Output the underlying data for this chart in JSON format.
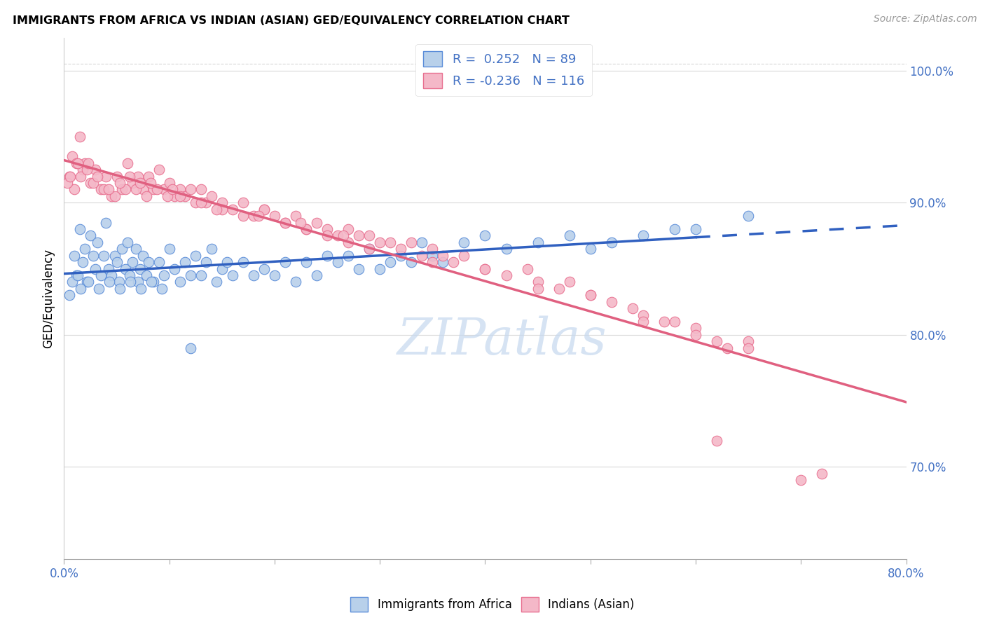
{
  "title": "IMMIGRANTS FROM AFRICA VS INDIAN (ASIAN) GED/EQUIVALENCY CORRELATION CHART",
  "source": "Source: ZipAtlas.com",
  "ylabel": "GED/Equivalency",
  "xlim": [
    0.0,
    80.0
  ],
  "ylim": [
    63.0,
    102.5
  ],
  "yticks": [
    70.0,
    80.0,
    90.0,
    100.0
  ],
  "xtick_positions": [
    0.0,
    10.0,
    20.0,
    30.0,
    40.0,
    50.0,
    60.0,
    70.0,
    80.0
  ],
  "R_blue": 0.252,
  "N_blue": 89,
  "R_pink": -0.236,
  "N_pink": 116,
  "blue_fill": "#b8d0ea",
  "pink_fill": "#f4b8c8",
  "blue_edge": "#5b8dd9",
  "pink_edge": "#e87090",
  "blue_line": "#3060c0",
  "pink_line": "#e06080",
  "watermark_color": "#c5d8ee",
  "legend_label_blue": "Immigrants from Africa",
  "legend_label_pink": "Indians (Asian)",
  "blue_x": [
    1.0,
    1.2,
    1.5,
    1.8,
    2.0,
    2.2,
    2.5,
    2.8,
    3.0,
    3.2,
    3.5,
    3.8,
    4.0,
    4.2,
    4.5,
    4.8,
    5.0,
    5.2,
    5.5,
    5.8,
    6.0,
    6.2,
    6.5,
    6.8,
    7.0,
    7.2,
    7.5,
    7.8,
    8.0,
    8.5,
    9.0,
    9.5,
    10.0,
    10.5,
    11.0,
    11.5,
    12.0,
    12.5,
    13.0,
    13.5,
    14.0,
    14.5,
    15.0,
    15.5,
    16.0,
    17.0,
    18.0,
    19.0,
    20.0,
    21.0,
    22.0,
    23.0,
    24.0,
    25.0,
    26.0,
    27.0,
    28.0,
    29.0,
    30.0,
    31.0,
    32.0,
    33.0,
    34.0,
    35.0,
    36.0,
    38.0,
    40.0,
    42.0,
    45.0,
    48.0,
    50.0,
    52.0,
    55.0,
    58.0,
    60.0,
    65.0,
    0.5,
    0.8,
    1.3,
    1.6,
    2.3,
    3.3,
    4.3,
    5.3,
    6.3,
    7.3,
    8.3,
    9.3,
    12.0
  ],
  "blue_y": [
    86.0,
    84.5,
    88.0,
    85.5,
    86.5,
    84.0,
    87.5,
    86.0,
    85.0,
    87.0,
    84.5,
    86.0,
    88.5,
    85.0,
    84.5,
    86.0,
    85.5,
    84.0,
    86.5,
    85.0,
    87.0,
    84.5,
    85.5,
    86.5,
    84.0,
    85.0,
    86.0,
    84.5,
    85.5,
    84.0,
    85.5,
    84.5,
    86.5,
    85.0,
    84.0,
    85.5,
    84.5,
    86.0,
    84.5,
    85.5,
    86.5,
    84.0,
    85.0,
    85.5,
    84.5,
    85.5,
    84.5,
    85.0,
    84.5,
    85.5,
    84.0,
    85.5,
    84.5,
    86.0,
    85.5,
    86.0,
    85.0,
    86.5,
    85.0,
    85.5,
    86.0,
    85.5,
    87.0,
    86.0,
    85.5,
    87.0,
    87.5,
    86.5,
    87.0,
    87.5,
    86.5,
    87.0,
    87.5,
    88.0,
    88.0,
    89.0,
    83.0,
    84.0,
    84.5,
    83.5,
    84.0,
    83.5,
    84.0,
    83.5,
    84.0,
    83.5,
    84.0,
    83.5,
    79.0
  ],
  "pink_x": [
    0.5,
    0.8,
    1.0,
    1.2,
    1.5,
    1.8,
    2.0,
    2.5,
    3.0,
    3.5,
    4.0,
    4.5,
    5.0,
    5.5,
    6.0,
    6.5,
    7.0,
    7.5,
    8.0,
    8.5,
    9.0,
    9.5,
    10.0,
    10.5,
    11.0,
    11.5,
    12.0,
    12.5,
    13.0,
    13.5,
    14.0,
    15.0,
    16.0,
    17.0,
    18.0,
    19.0,
    20.0,
    21.0,
    22.0,
    23.0,
    24.0,
    25.0,
    26.0,
    27.0,
    28.0,
    29.0,
    30.0,
    31.0,
    32.0,
    33.0,
    34.0,
    35.0,
    36.0,
    37.0,
    38.0,
    40.0,
    42.0,
    44.0,
    45.0,
    47.0,
    48.0,
    50.0,
    52.0,
    54.0,
    55.0,
    57.0,
    58.0,
    60.0,
    62.0,
    63.0,
    65.0,
    0.3,
    0.6,
    1.3,
    1.6,
    2.2,
    2.8,
    3.8,
    4.8,
    5.8,
    6.8,
    7.8,
    8.8,
    9.8,
    11.0,
    13.0,
    15.0,
    17.0,
    19.0,
    21.0,
    23.0,
    25.0,
    27.0,
    29.0,
    6.2,
    7.2,
    8.2,
    4.2,
    3.2,
    2.3,
    5.3,
    10.3,
    14.5,
    18.5,
    22.5,
    26.5,
    35.0,
    40.0,
    45.0,
    50.0,
    55.0,
    60.0,
    65.0,
    70.0,
    72.0,
    62.0
  ],
  "pink_y": [
    92.0,
    93.5,
    91.0,
    93.0,
    95.0,
    92.5,
    93.0,
    91.5,
    92.5,
    91.0,
    92.0,
    90.5,
    92.0,
    91.0,
    93.0,
    91.5,
    92.0,
    91.0,
    92.0,
    91.0,
    92.5,
    91.0,
    91.5,
    90.5,
    91.0,
    90.5,
    91.0,
    90.0,
    91.0,
    90.0,
    90.5,
    90.0,
    89.5,
    90.0,
    89.0,
    89.5,
    89.0,
    88.5,
    89.0,
    88.0,
    88.5,
    88.0,
    87.5,
    88.0,
    87.5,
    87.5,
    87.0,
    87.0,
    86.5,
    87.0,
    86.0,
    86.5,
    86.0,
    85.5,
    86.0,
    85.0,
    84.5,
    85.0,
    84.0,
    83.5,
    84.0,
    83.0,
    82.5,
    82.0,
    81.5,
    81.0,
    81.0,
    80.5,
    79.5,
    79.0,
    79.5,
    91.5,
    92.0,
    93.0,
    92.0,
    92.5,
    91.5,
    91.0,
    90.5,
    91.0,
    91.0,
    90.5,
    91.0,
    90.5,
    90.5,
    90.0,
    89.5,
    89.0,
    89.5,
    88.5,
    88.0,
    87.5,
    87.0,
    86.5,
    92.0,
    91.5,
    91.5,
    91.0,
    92.0,
    93.0,
    91.5,
    91.0,
    89.5,
    89.0,
    88.5,
    87.5,
    85.5,
    85.0,
    83.5,
    83.0,
    81.0,
    80.0,
    79.0,
    69.0,
    69.5,
    72.0
  ]
}
